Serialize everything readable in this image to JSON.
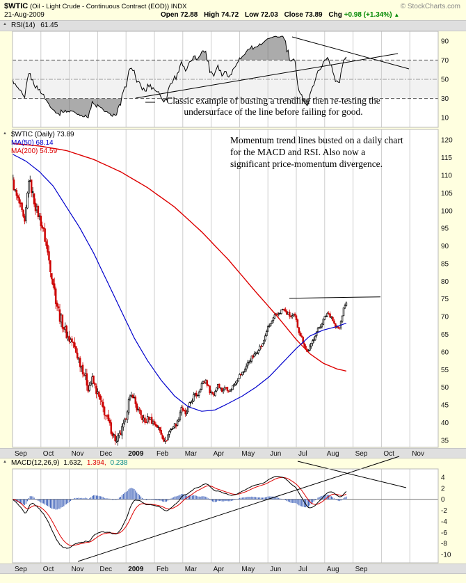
{
  "header": {
    "symbol": "$WTIC",
    "name": "(Oil - Light Crude - Continuous Contract (EOD)) INDX",
    "date": "21-Aug-2009",
    "open_label": "Open",
    "open": "72.88",
    "high_label": "High",
    "high": "74.72",
    "low_label": "Low",
    "low": "72.03",
    "close_label": "Close",
    "close": "73.89",
    "chg_label": "Chg",
    "chg": "+0.98 (+1.34%)",
    "chg_arrow": "▲",
    "copyright": "© StockCharts.com"
  },
  "rsi_panel": {
    "label": "RSI(14)",
    "value": "61.45",
    "ticks": [
      90,
      70,
      50,
      30,
      10
    ],
    "annotation": [
      "Classic example of busting a trendline then re-testing the",
      "undersurface of the line before failing for good."
    ]
  },
  "price_panel": {
    "legend_symbol": "$WTIC (Daily) 73.89",
    "legend_ma50": "MA(50) 68.14",
    "legend_ma200": "MA(200) 54.59",
    "ticks": [
      120,
      115,
      110,
      105,
      100,
      95,
      90,
      85,
      80,
      75,
      70,
      65,
      60,
      55,
      50,
      45,
      40,
      35
    ],
    "annotation": [
      "Momentum trend lines busted on a daily chart",
      "for the MACD and RSI. Also now a",
      "significant price-momentum divergence."
    ]
  },
  "macd_panel": {
    "label": "MACD(12,26,9)",
    "v1": "1.632,",
    "v2": "1.394,",
    "v3": "0.238",
    "ticks": [
      4,
      2,
      0,
      -2,
      -4,
      -6,
      -8,
      -10
    ]
  },
  "x_axis": {
    "months_main": [
      "Sep",
      "Oct",
      "Nov",
      "Dec",
      "2009",
      "Feb",
      "Mar",
      "Apr",
      "May",
      "Jun",
      "Jul",
      "Aug",
      "Sep",
      "Oct",
      "Nov"
    ],
    "months_bottom": [
      "Sep",
      "Oct",
      "Nov",
      "Dec",
      "2009",
      "Feb",
      "Mar",
      "Apr",
      "May",
      "Jun",
      "Jul",
      "Aug",
      "Sep"
    ]
  },
  "chart_data": {
    "type": "candlestick",
    "symbol": "$WTIC",
    "timeframe": "daily, Sep 2008 - 21 Aug 2009",
    "last_quote": {
      "open": 72.88,
      "high": 74.72,
      "low": 72.03,
      "close": 73.89,
      "chg": 0.98,
      "chg_pct": 1.34
    },
    "indicators": {
      "rsi_period": 14,
      "rsi_last": 61.45,
      "ma50_last": 68.14,
      "ma200_last": 54.59,
      "macd_params": [
        12,
        26,
        9
      ],
      "macd_last": 1.632,
      "macd_signal_last": 1.394,
      "macd_hist_last": 0.238
    },
    "price_ylim": [
      33,
      123
    ],
    "rsi_ylim": [
      0,
      100
    ],
    "macd_ylim": [
      -11.5,
      5.5
    ],
    "days": 248,
    "days_per_month": 21,
    "months_shown": 15,
    "data_months": 12,
    "price_anchors": [
      [
        0,
        108
      ],
      [
        3,
        104
      ],
      [
        6,
        101
      ],
      [
        9,
        96
      ],
      [
        12,
        109
      ],
      [
        14,
        106
      ],
      [
        17,
        101
      ],
      [
        20,
        98
      ],
      [
        23,
        94
      ],
      [
        26,
        88
      ],
      [
        29,
        82
      ],
      [
        32,
        75
      ],
      [
        35,
        70
      ],
      [
        38,
        67
      ],
      [
        41,
        64
      ],
      [
        44,
        63
      ],
      [
        47,
        60
      ],
      [
        50,
        57
      ],
      [
        53,
        54
      ],
      [
        56,
        50
      ],
      [
        59,
        52
      ],
      [
        62,
        49
      ],
      [
        65,
        46
      ],
      [
        68,
        43
      ],
      [
        71,
        40
      ],
      [
        74,
        37
      ],
      [
        77,
        34.5
      ],
      [
        80,
        37
      ],
      [
        83,
        40
      ],
      [
        86,
        46
      ],
      [
        89,
        48
      ],
      [
        92,
        44
      ],
      [
        95,
        42
      ],
      [
        98,
        40
      ],
      [
        101,
        41.5
      ],
      [
        104,
        40
      ],
      [
        107,
        39
      ],
      [
        110,
        37
      ],
      [
        113,
        34.5
      ],
      [
        116,
        37.5
      ],
      [
        119,
        39
      ],
      [
        122,
        40
      ],
      [
        125,
        44.5
      ],
      [
        128,
        42
      ],
      [
        131,
        45
      ],
      [
        134,
        47.5
      ],
      [
        137,
        48
      ],
      [
        140,
        51
      ],
      [
        143,
        52
      ],
      [
        146,
        49
      ],
      [
        149,
        48
      ],
      [
        152,
        51
      ],
      [
        155,
        49
      ],
      [
        158,
        50
      ],
      [
        161,
        49
      ],
      [
        164,
        51
      ],
      [
        167,
        53
      ],
      [
        170,
        54
      ],
      [
        173,
        56
      ],
      [
        176,
        58
      ],
      [
        179,
        59
      ],
      [
        182,
        61
      ],
      [
        185,
        62
      ],
      [
        188,
        66
      ],
      [
        191,
        68
      ],
      [
        194,
        70
      ],
      [
        197,
        71
      ],
      [
        200,
        72
      ],
      [
        203,
        71
      ],
      [
        206,
        70
      ],
      [
        209,
        70
      ],
      [
        212,
        66
      ],
      [
        215,
        63
      ],
      [
        218,
        60
      ],
      [
        221,
        62
      ],
      [
        224,
        65
      ],
      [
        227,
        67
      ],
      [
        230,
        69
      ],
      [
        233,
        71
      ],
      [
        236,
        70
      ],
      [
        239,
        67
      ],
      [
        242,
        66.7
      ],
      [
        245,
        72.4
      ],
      [
        247,
        73.89
      ]
    ],
    "volatility_anchors": [
      [
        0,
        2.2
      ],
      [
        20,
        2.8
      ],
      [
        30,
        3.4
      ],
      [
        50,
        3.0
      ],
      [
        70,
        2.6
      ],
      [
        90,
        2.2
      ],
      [
        110,
        1.8
      ],
      [
        130,
        1.5
      ],
      [
        150,
        1.3
      ],
      [
        170,
        1.4
      ],
      [
        190,
        1.3
      ],
      [
        210,
        1.5
      ],
      [
        230,
        1.3
      ],
      [
        247,
        1.0
      ]
    ],
    "ma50_anchors": [
      [
        0,
        116
      ],
      [
        10,
        114
      ],
      [
        20,
        111
      ],
      [
        30,
        107
      ],
      [
        40,
        101
      ],
      [
        50,
        95
      ],
      [
        60,
        88
      ],
      [
        70,
        80
      ],
      [
        80,
        72
      ],
      [
        90,
        64
      ],
      [
        100,
        57.5
      ],
      [
        110,
        52
      ],
      [
        120,
        47.5
      ],
      [
        130,
        44.5
      ],
      [
        140,
        43.2
      ],
      [
        150,
        43.6
      ],
      [
        160,
        45.5
      ],
      [
        170,
        47.5
      ],
      [
        180,
        50
      ],
      [
        190,
        53
      ],
      [
        200,
        57
      ],
      [
        210,
        61
      ],
      [
        220,
        64.5
      ],
      [
        230,
        66.2
      ],
      [
        240,
        67.2
      ],
      [
        247,
        68.14
      ]
    ],
    "ma200_anchors": [
      [
        0,
        119
      ],
      [
        20,
        118.3
      ],
      [
        40,
        117
      ],
      [
        60,
        114.5
      ],
      [
        80,
        111
      ],
      [
        100,
        106.5
      ],
      [
        120,
        101
      ],
      [
        140,
        94
      ],
      [
        160,
        86
      ],
      [
        180,
        77
      ],
      [
        195,
        70.5
      ],
      [
        210,
        63.5
      ],
      [
        220,
        59.5
      ],
      [
        230,
        56.8
      ],
      [
        240,
        55.2
      ],
      [
        247,
        54.59
      ]
    ],
    "overlays": {
      "price_resistance_level": 75.4,
      "rsi_thresholds": [
        70,
        50,
        30
      ],
      "macd_zero_line": 0
    }
  },
  "colors": {
    "page_bg": "#FFFFE0",
    "plot_bg": "#FFFFFF",
    "band_bg": "#DFDFDF",
    "grid": "#CCCCCC",
    "up": "#000000",
    "down": "#CC0000",
    "ma50": "#0000CC",
    "ma200": "#DD0000",
    "rsi_line": "#000000",
    "rsi_fill": "#666666",
    "macd_hist": "#4466BB",
    "macd_line": "#000000",
    "macd_signal": "#DD0000",
    "change_green": "#008800",
    "copyright_gray": "#888888",
    "macd_value3_teal": "#008888",
    "trendline": "#000000"
  }
}
